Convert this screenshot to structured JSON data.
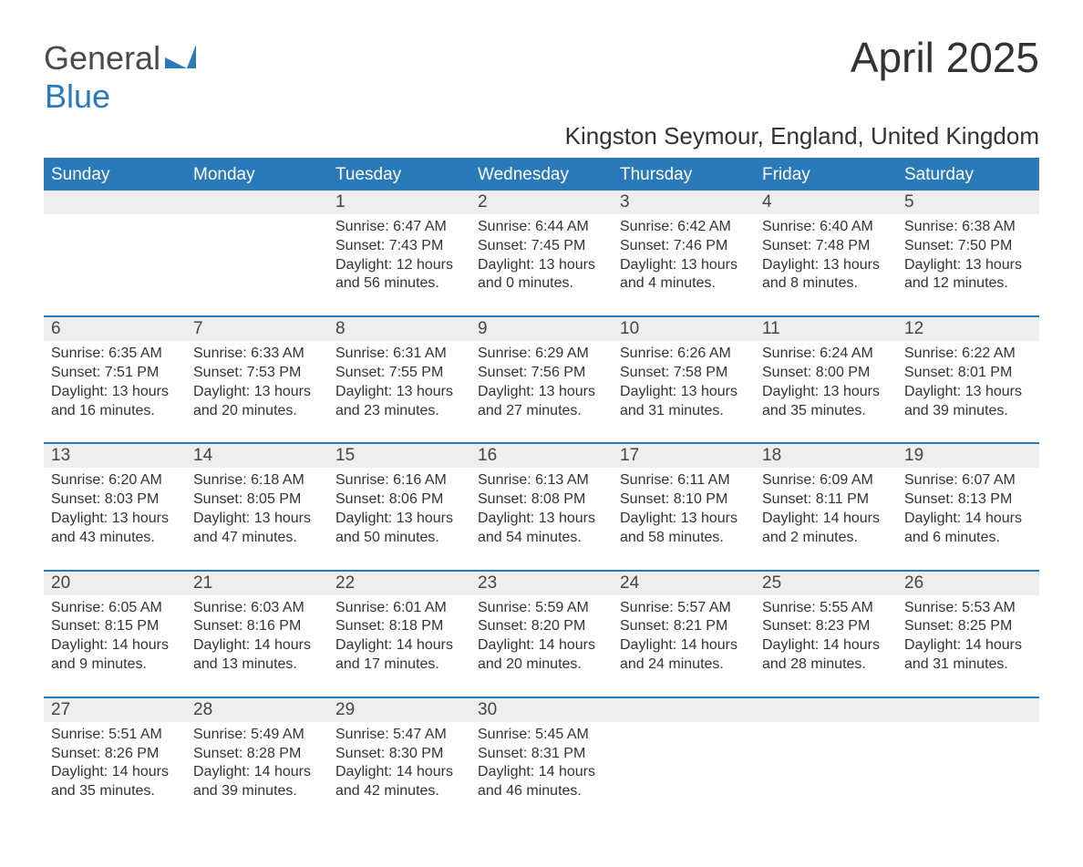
{
  "brand": {
    "word1": "General",
    "word2": "Blue"
  },
  "title": "April 2025",
  "location": "Kingston Seymour, England, United Kingdom",
  "colors": {
    "accent": "#2a7ab9",
    "header_bg": "#2a7ab9",
    "header_text": "#ffffff",
    "daynum_bg": "#eeeeee",
    "body_bg": "#ffffff",
    "text": "#333333"
  },
  "day_names": [
    "Sunday",
    "Monday",
    "Tuesday",
    "Wednesday",
    "Thursday",
    "Friday",
    "Saturday"
  ],
  "weeks": [
    [
      {
        "n": "",
        "lines": []
      },
      {
        "n": "",
        "lines": []
      },
      {
        "n": "1",
        "lines": [
          "Sunrise: 6:47 AM",
          "Sunset: 7:43 PM",
          "Daylight: 12 hours and 56 minutes."
        ]
      },
      {
        "n": "2",
        "lines": [
          "Sunrise: 6:44 AM",
          "Sunset: 7:45 PM",
          "Daylight: 13 hours and 0 minutes."
        ]
      },
      {
        "n": "3",
        "lines": [
          "Sunrise: 6:42 AM",
          "Sunset: 7:46 PM",
          "Daylight: 13 hours and 4 minutes."
        ]
      },
      {
        "n": "4",
        "lines": [
          "Sunrise: 6:40 AM",
          "Sunset: 7:48 PM",
          "Daylight: 13 hours and 8 minutes."
        ]
      },
      {
        "n": "5",
        "lines": [
          "Sunrise: 6:38 AM",
          "Sunset: 7:50 PM",
          "Daylight: 13 hours and 12 minutes."
        ]
      }
    ],
    [
      {
        "n": "6",
        "lines": [
          "Sunrise: 6:35 AM",
          "Sunset: 7:51 PM",
          "Daylight: 13 hours and 16 minutes."
        ]
      },
      {
        "n": "7",
        "lines": [
          "Sunrise: 6:33 AM",
          "Sunset: 7:53 PM",
          "Daylight: 13 hours and 20 minutes."
        ]
      },
      {
        "n": "8",
        "lines": [
          "Sunrise: 6:31 AM",
          "Sunset: 7:55 PM",
          "Daylight: 13 hours and 23 minutes."
        ]
      },
      {
        "n": "9",
        "lines": [
          "Sunrise: 6:29 AM",
          "Sunset: 7:56 PM",
          "Daylight: 13 hours and 27 minutes."
        ]
      },
      {
        "n": "10",
        "lines": [
          "Sunrise: 6:26 AM",
          "Sunset: 7:58 PM",
          "Daylight: 13 hours and 31 minutes."
        ]
      },
      {
        "n": "11",
        "lines": [
          "Sunrise: 6:24 AM",
          "Sunset: 8:00 PM",
          "Daylight: 13 hours and 35 minutes."
        ]
      },
      {
        "n": "12",
        "lines": [
          "Sunrise: 6:22 AM",
          "Sunset: 8:01 PM",
          "Daylight: 13 hours and 39 minutes."
        ]
      }
    ],
    [
      {
        "n": "13",
        "lines": [
          "Sunrise: 6:20 AM",
          "Sunset: 8:03 PM",
          "Daylight: 13 hours and 43 minutes."
        ]
      },
      {
        "n": "14",
        "lines": [
          "Sunrise: 6:18 AM",
          "Sunset: 8:05 PM",
          "Daylight: 13 hours and 47 minutes."
        ]
      },
      {
        "n": "15",
        "lines": [
          "Sunrise: 6:16 AM",
          "Sunset: 8:06 PM",
          "Daylight: 13 hours and 50 minutes."
        ]
      },
      {
        "n": "16",
        "lines": [
          "Sunrise: 6:13 AM",
          "Sunset: 8:08 PM",
          "Daylight: 13 hours and 54 minutes."
        ]
      },
      {
        "n": "17",
        "lines": [
          "Sunrise: 6:11 AM",
          "Sunset: 8:10 PM",
          "Daylight: 13 hours and 58 minutes."
        ]
      },
      {
        "n": "18",
        "lines": [
          "Sunrise: 6:09 AM",
          "Sunset: 8:11 PM",
          "Daylight: 14 hours and 2 minutes."
        ]
      },
      {
        "n": "19",
        "lines": [
          "Sunrise: 6:07 AM",
          "Sunset: 8:13 PM",
          "Daylight: 14 hours and 6 minutes."
        ]
      }
    ],
    [
      {
        "n": "20",
        "lines": [
          "Sunrise: 6:05 AM",
          "Sunset: 8:15 PM",
          "Daylight: 14 hours and 9 minutes."
        ]
      },
      {
        "n": "21",
        "lines": [
          "Sunrise: 6:03 AM",
          "Sunset: 8:16 PM",
          "Daylight: 14 hours and 13 minutes."
        ]
      },
      {
        "n": "22",
        "lines": [
          "Sunrise: 6:01 AM",
          "Sunset: 8:18 PM",
          "Daylight: 14 hours and 17 minutes."
        ]
      },
      {
        "n": "23",
        "lines": [
          "Sunrise: 5:59 AM",
          "Sunset: 8:20 PM",
          "Daylight: 14 hours and 20 minutes."
        ]
      },
      {
        "n": "24",
        "lines": [
          "Sunrise: 5:57 AM",
          "Sunset: 8:21 PM",
          "Daylight: 14 hours and 24 minutes."
        ]
      },
      {
        "n": "25",
        "lines": [
          "Sunrise: 5:55 AM",
          "Sunset: 8:23 PM",
          "Daylight: 14 hours and 28 minutes."
        ]
      },
      {
        "n": "26",
        "lines": [
          "Sunrise: 5:53 AM",
          "Sunset: 8:25 PM",
          "Daylight: 14 hours and 31 minutes."
        ]
      }
    ],
    [
      {
        "n": "27",
        "lines": [
          "Sunrise: 5:51 AM",
          "Sunset: 8:26 PM",
          "Daylight: 14 hours and 35 minutes."
        ]
      },
      {
        "n": "28",
        "lines": [
          "Sunrise: 5:49 AM",
          "Sunset: 8:28 PM",
          "Daylight: 14 hours and 39 minutes."
        ]
      },
      {
        "n": "29",
        "lines": [
          "Sunrise: 5:47 AM",
          "Sunset: 8:30 PM",
          "Daylight: 14 hours and 42 minutes."
        ]
      },
      {
        "n": "30",
        "lines": [
          "Sunrise: 5:45 AM",
          "Sunset: 8:31 PM",
          "Daylight: 14 hours and 46 minutes."
        ]
      },
      {
        "n": "",
        "lines": []
      },
      {
        "n": "",
        "lines": []
      },
      {
        "n": "",
        "lines": []
      }
    ]
  ]
}
